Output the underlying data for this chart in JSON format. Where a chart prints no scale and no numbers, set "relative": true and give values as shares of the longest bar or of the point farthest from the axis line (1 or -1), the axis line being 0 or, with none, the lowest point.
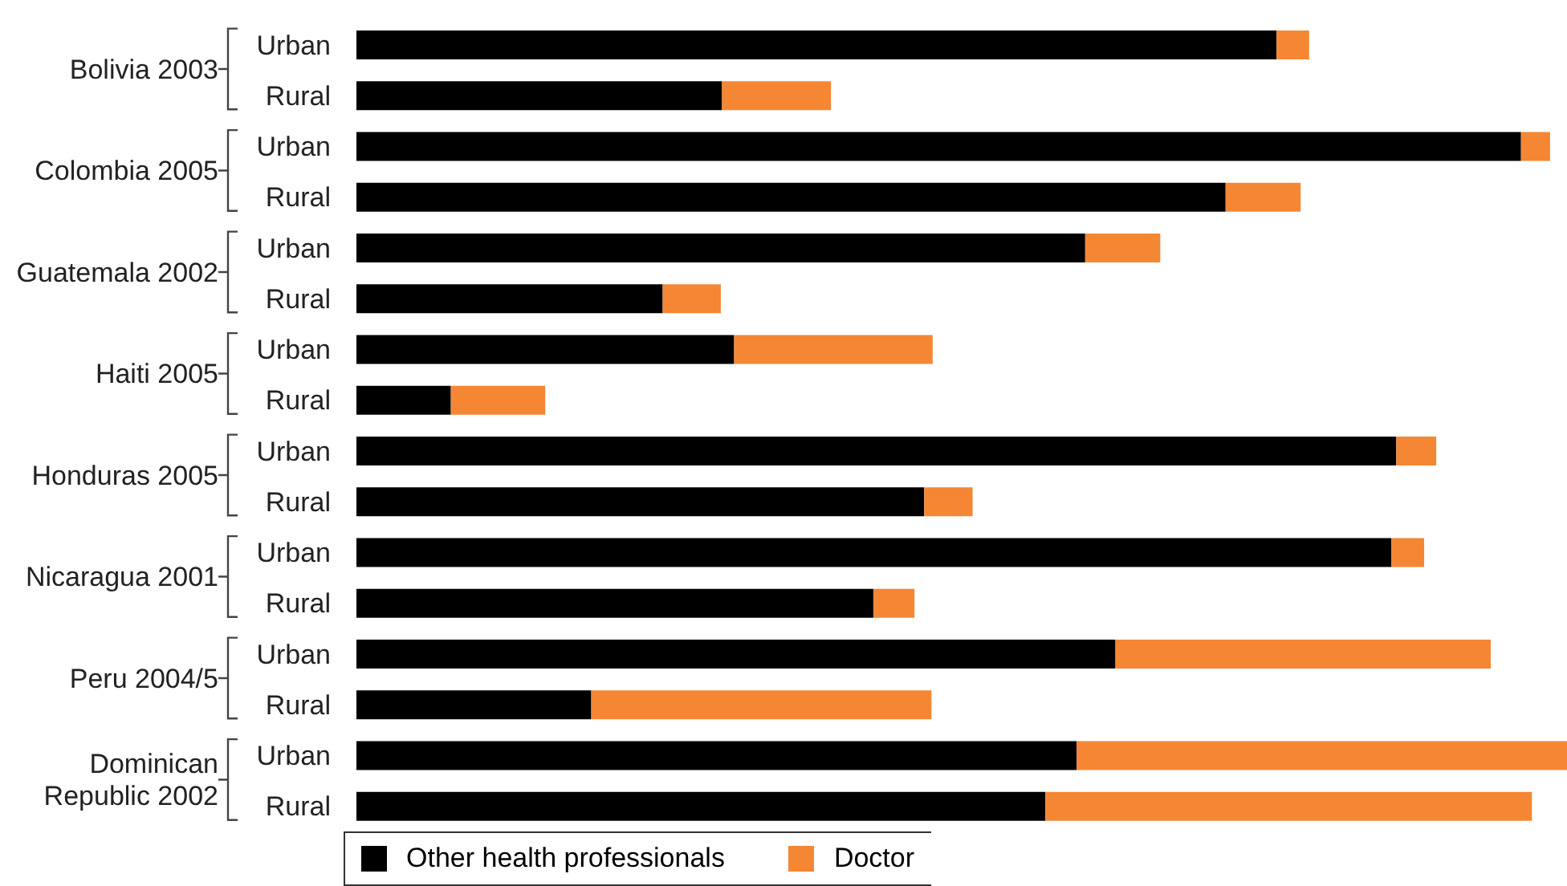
{
  "chart_data": {
    "type": "bar",
    "orientation": "horizontal",
    "stacked": true,
    "relative": true,
    "legend": "bottom left",
    "categories": [
      "Urban",
      "Rural",
      "Urban",
      "Rural",
      "Urban",
      "Rural",
      "Urban",
      "Rural",
      "Urban",
      "Rural",
      "Urban",
      "Rural",
      "Urban",
      "Rural",
      "Urban",
      "Rural"
    ],
    "annotations": [
      "Bolivia 2003",
      "Colombia 2005",
      "Guatemala 2002",
      "Haiti 2005",
      "Honduras 2005",
      "Nicaragua 2001",
      "Peru 2004/5",
      "Dominican Republic 2002"
    ],
    "series": [
      {
        "name": "Other health professionals",
        "color": "#000000",
        "values": [
          0.76,
          0.302,
          0.962,
          0.718,
          0.602,
          0.253,
          0.312,
          0.078,
          0.859,
          0.469,
          0.855,
          0.427,
          0.627,
          0.194,
          0.595,
          0.569
        ]
      },
      {
        "name": "Doctor",
        "color": "#f58634",
        "values": [
          0.027,
          0.09,
          0.024,
          0.062,
          0.062,
          0.048,
          0.164,
          0.078,
          0.033,
          0.04,
          0.027,
          0.034,
          0.31,
          0.281,
          0.405,
          0.402
        ]
      }
    ]
  }
}
